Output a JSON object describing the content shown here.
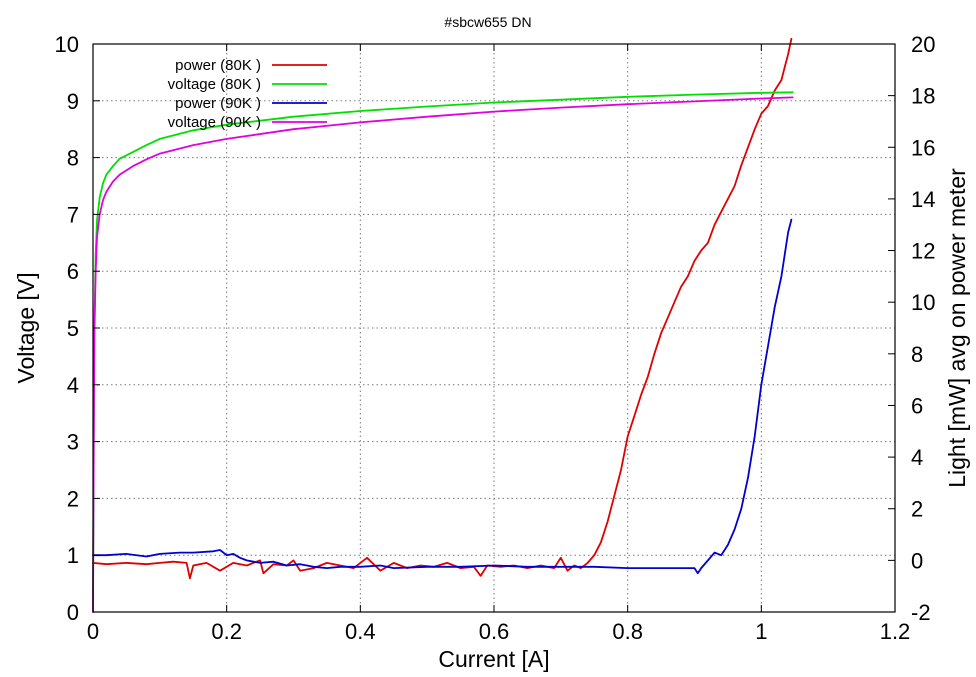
{
  "chart_data": {
    "type": "line",
    "title": "#sbcw655 DN",
    "xlabel": "Current [A]",
    "ylabel": "Voltage [V]",
    "y2label": "Light [mW] avg on power meter",
    "xlim": [
      0,
      1.2
    ],
    "ylim": [
      0,
      10
    ],
    "y2lim": [
      -2,
      20
    ],
    "xticks": [
      "0",
      "0.2",
      "0.4",
      "0.6",
      "0.8",
      "1",
      "1.2"
    ],
    "yticks": [
      "0",
      "1",
      "2",
      "3",
      "4",
      "5",
      "6",
      "7",
      "8",
      "9",
      "10"
    ],
    "y2ticks": [
      "-2",
      "0",
      "2",
      "4",
      "6",
      "8",
      "10",
      "12",
      "14",
      "16",
      "18",
      "20"
    ],
    "grid": true,
    "legend_position": "top-left",
    "series": [
      {
        "name": "power (80K )",
        "axis": "y2",
        "color": "#e00000",
        "x": [
          0,
          0.02,
          0.05,
          0.08,
          0.1,
          0.12,
          0.14,
          0.145,
          0.15,
          0.17,
          0.19,
          0.21,
          0.23,
          0.25,
          0.255,
          0.27,
          0.29,
          0.3,
          0.31,
          0.33,
          0.35,
          0.37,
          0.39,
          0.41,
          0.43,
          0.45,
          0.47,
          0.49,
          0.51,
          0.53,
          0.55,
          0.57,
          0.58,
          0.59,
          0.61,
          0.63,
          0.65,
          0.67,
          0.69,
          0.7,
          0.71,
          0.72,
          0.73,
          0.74,
          0.75,
          0.76,
          0.77,
          0.78,
          0.79,
          0.8,
          0.81,
          0.82,
          0.83,
          0.84,
          0.85,
          0.86,
          0.87,
          0.88,
          0.89,
          0.9,
          0.91,
          0.92,
          0.93,
          0.94,
          0.95,
          0.96,
          0.97,
          0.98,
          0.99,
          1.0,
          1.01,
          1.02,
          1.03,
          1.035,
          1.04,
          1.045
        ],
        "values": [
          -0.1,
          -0.15,
          -0.1,
          -0.15,
          -0.1,
          -0.05,
          -0.1,
          -0.7,
          -0.2,
          -0.1,
          -0.4,
          -0.1,
          -0.2,
          0.0,
          -0.5,
          -0.15,
          -0.2,
          0.0,
          -0.4,
          -0.3,
          -0.1,
          -0.2,
          -0.3,
          0.1,
          -0.4,
          -0.1,
          -0.3,
          -0.2,
          -0.25,
          -0.1,
          -0.3,
          -0.25,
          -0.6,
          -0.2,
          -0.25,
          -0.2,
          -0.3,
          -0.2,
          -0.3,
          0.1,
          -0.4,
          -0.2,
          -0.3,
          -0.1,
          0.2,
          0.7,
          1.5,
          2.5,
          3.5,
          4.8,
          5.6,
          6.4,
          7.1,
          8.0,
          8.8,
          9.4,
          10.0,
          10.6,
          11.0,
          11.6,
          12.0,
          12.3,
          13.0,
          13.5,
          14.0,
          14.5,
          15.3,
          16.0,
          16.7,
          17.3,
          17.6,
          18.2,
          18.6,
          19.1,
          19.6,
          20.2
        ]
      },
      {
        "name": "voltage (80K )",
        "axis": "y",
        "color": "#00e000",
        "x": [
          0,
          0.001,
          0.002,
          0.004,
          0.006,
          0.01,
          0.015,
          0.02,
          0.03,
          0.04,
          0.06,
          0.08,
          0.1,
          0.15,
          0.2,
          0.3,
          0.4,
          0.5,
          0.6,
          0.7,
          0.8,
          0.9,
          1.0,
          1.047
        ],
        "values": [
          0.0,
          3.0,
          5.0,
          6.3,
          6.9,
          7.3,
          7.55,
          7.7,
          7.85,
          7.98,
          8.1,
          8.22,
          8.33,
          8.48,
          8.58,
          8.72,
          8.82,
          8.9,
          8.97,
          9.02,
          9.07,
          9.11,
          9.14,
          9.15
        ]
      },
      {
        "name": "power (90K )",
        "axis": "y2",
        "color": "#0000d0",
        "x": [
          0,
          0.02,
          0.05,
          0.08,
          0.1,
          0.13,
          0.15,
          0.18,
          0.19,
          0.2,
          0.21,
          0.22,
          0.23,
          0.25,
          0.27,
          0.29,
          0.31,
          0.33,
          0.35,
          0.37,
          0.4,
          0.43,
          0.45,
          0.5,
          0.55,
          0.6,
          0.65,
          0.7,
          0.75,
          0.8,
          0.85,
          0.88,
          0.9,
          0.905,
          0.91,
          0.92,
          0.93,
          0.94,
          0.95,
          0.96,
          0.97,
          0.98,
          0.99,
          1.0,
          1.01,
          1.02,
          1.03,
          1.04,
          1.045
        ],
        "values": [
          0.2,
          0.2,
          0.25,
          0.15,
          0.25,
          0.3,
          0.3,
          0.35,
          0.4,
          0.2,
          0.25,
          0.1,
          0.0,
          -0.1,
          -0.05,
          -0.2,
          -0.15,
          -0.25,
          -0.3,
          -0.25,
          -0.25,
          -0.2,
          -0.3,
          -0.25,
          -0.25,
          -0.2,
          -0.25,
          -0.25,
          -0.25,
          -0.3,
          -0.3,
          -0.3,
          -0.3,
          -0.5,
          -0.3,
          0.0,
          0.3,
          0.2,
          0.6,
          1.2,
          2.0,
          3.2,
          4.8,
          6.8,
          8.3,
          9.8,
          11.0,
          12.7,
          13.2
        ]
      },
      {
        "name": "voltage (90K )",
        "axis": "y",
        "color": "#e000e0",
        "x": [
          0,
          0.001,
          0.002,
          0.004,
          0.006,
          0.01,
          0.015,
          0.02,
          0.03,
          0.04,
          0.06,
          0.08,
          0.1,
          0.15,
          0.2,
          0.3,
          0.4,
          0.5,
          0.6,
          0.7,
          0.8,
          0.9,
          1.0,
          1.047
        ],
        "values": [
          0.0,
          2.8,
          4.8,
          6.0,
          6.6,
          7.0,
          7.25,
          7.4,
          7.58,
          7.7,
          7.85,
          7.97,
          8.07,
          8.22,
          8.33,
          8.5,
          8.62,
          8.72,
          8.81,
          8.88,
          8.94,
          8.99,
          9.04,
          9.06
        ]
      }
    ]
  }
}
